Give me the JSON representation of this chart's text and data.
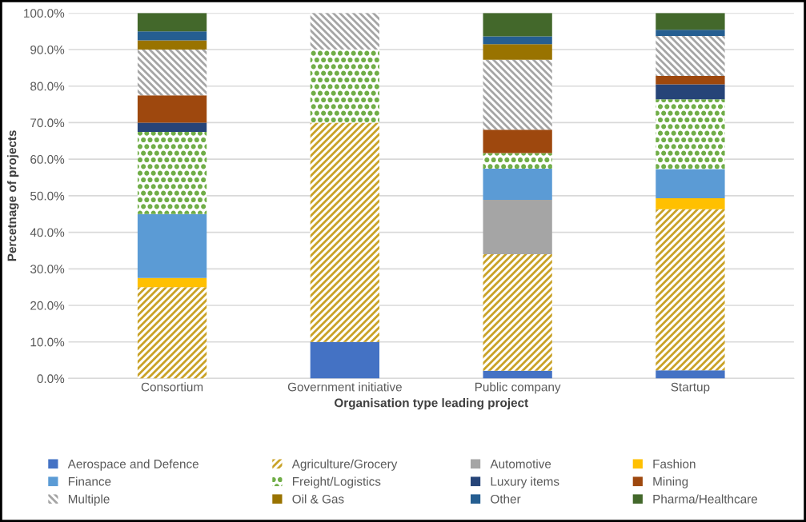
{
  "chart_data": {
    "type": "bar",
    "stacked": true,
    "xlabel": "Organisation type leading project",
    "ylabel": "Percetnage of projects",
    "categories": [
      "Consortium",
      "Government initiative",
      "Public company",
      "Startup"
    ],
    "series": [
      {
        "name": "Aerospace and Defence",
        "color": "#4472c4",
        "values": [
          0,
          10,
          2.1,
          2.2
        ]
      },
      {
        "name": "Agriculture/Grocery",
        "color": "#c9a227",
        "values": [
          25,
          60,
          31.9,
          44.1
        ]
      },
      {
        "name": "Automotive",
        "color": "#a5a5a5",
        "values": [
          0,
          0,
          14.9,
          0
        ]
      },
      {
        "name": "Fashion",
        "color": "#ffc000",
        "values": [
          2.5,
          0,
          0,
          3.0
        ]
      },
      {
        "name": "Finance",
        "color": "#5b9bd5",
        "values": [
          17.5,
          0,
          8.5,
          8.0
        ]
      },
      {
        "name": "Freight/Logistics",
        "color": "#70ad47",
        "values": [
          22.5,
          20,
          4.3,
          19.1
        ]
      },
      {
        "name": "Luxury items",
        "color": "#264478",
        "values": [
          2.5,
          0,
          0,
          4.1
        ]
      },
      {
        "name": "Mining",
        "color": "#9e480e",
        "values": [
          7.5,
          0,
          6.4,
          2.3
        ]
      },
      {
        "name": "Multiple",
        "color": "#a5a5a5",
        "values": [
          12.5,
          10,
          19.1,
          10.9
        ]
      },
      {
        "name": "Oil & Gas",
        "color": "#997300",
        "values": [
          2.5,
          0,
          4.3,
          0
        ]
      },
      {
        "name": "Other",
        "color": "#255e91",
        "values": [
          2.5,
          0,
          2.1,
          1.7
        ]
      },
      {
        "name": "Pharma/Healthcare",
        "color": "#43682b",
        "values": [
          5,
          0,
          6.4,
          4.6
        ]
      }
    ],
    "ylim": [
      0,
      100
    ],
    "yticks": [
      {
        "value": 0,
        "label": "0.0%"
      },
      {
        "value": 10,
        "label": "10.0%"
      },
      {
        "value": 20,
        "label": "20.0%"
      },
      {
        "value": 30,
        "label": "30.0%"
      },
      {
        "value": 40,
        "label": "40.0%"
      },
      {
        "value": 50,
        "label": "50.0%"
      },
      {
        "value": 60,
        "label": "60.0%"
      },
      {
        "value": 70,
        "label": "70.0%"
      },
      {
        "value": 80,
        "label": "80.0%"
      },
      {
        "value": 90,
        "label": "90.0%"
      },
      {
        "value": 100,
        "label": "100.0%"
      }
    ],
    "grid": "y",
    "legend": "bottom"
  }
}
